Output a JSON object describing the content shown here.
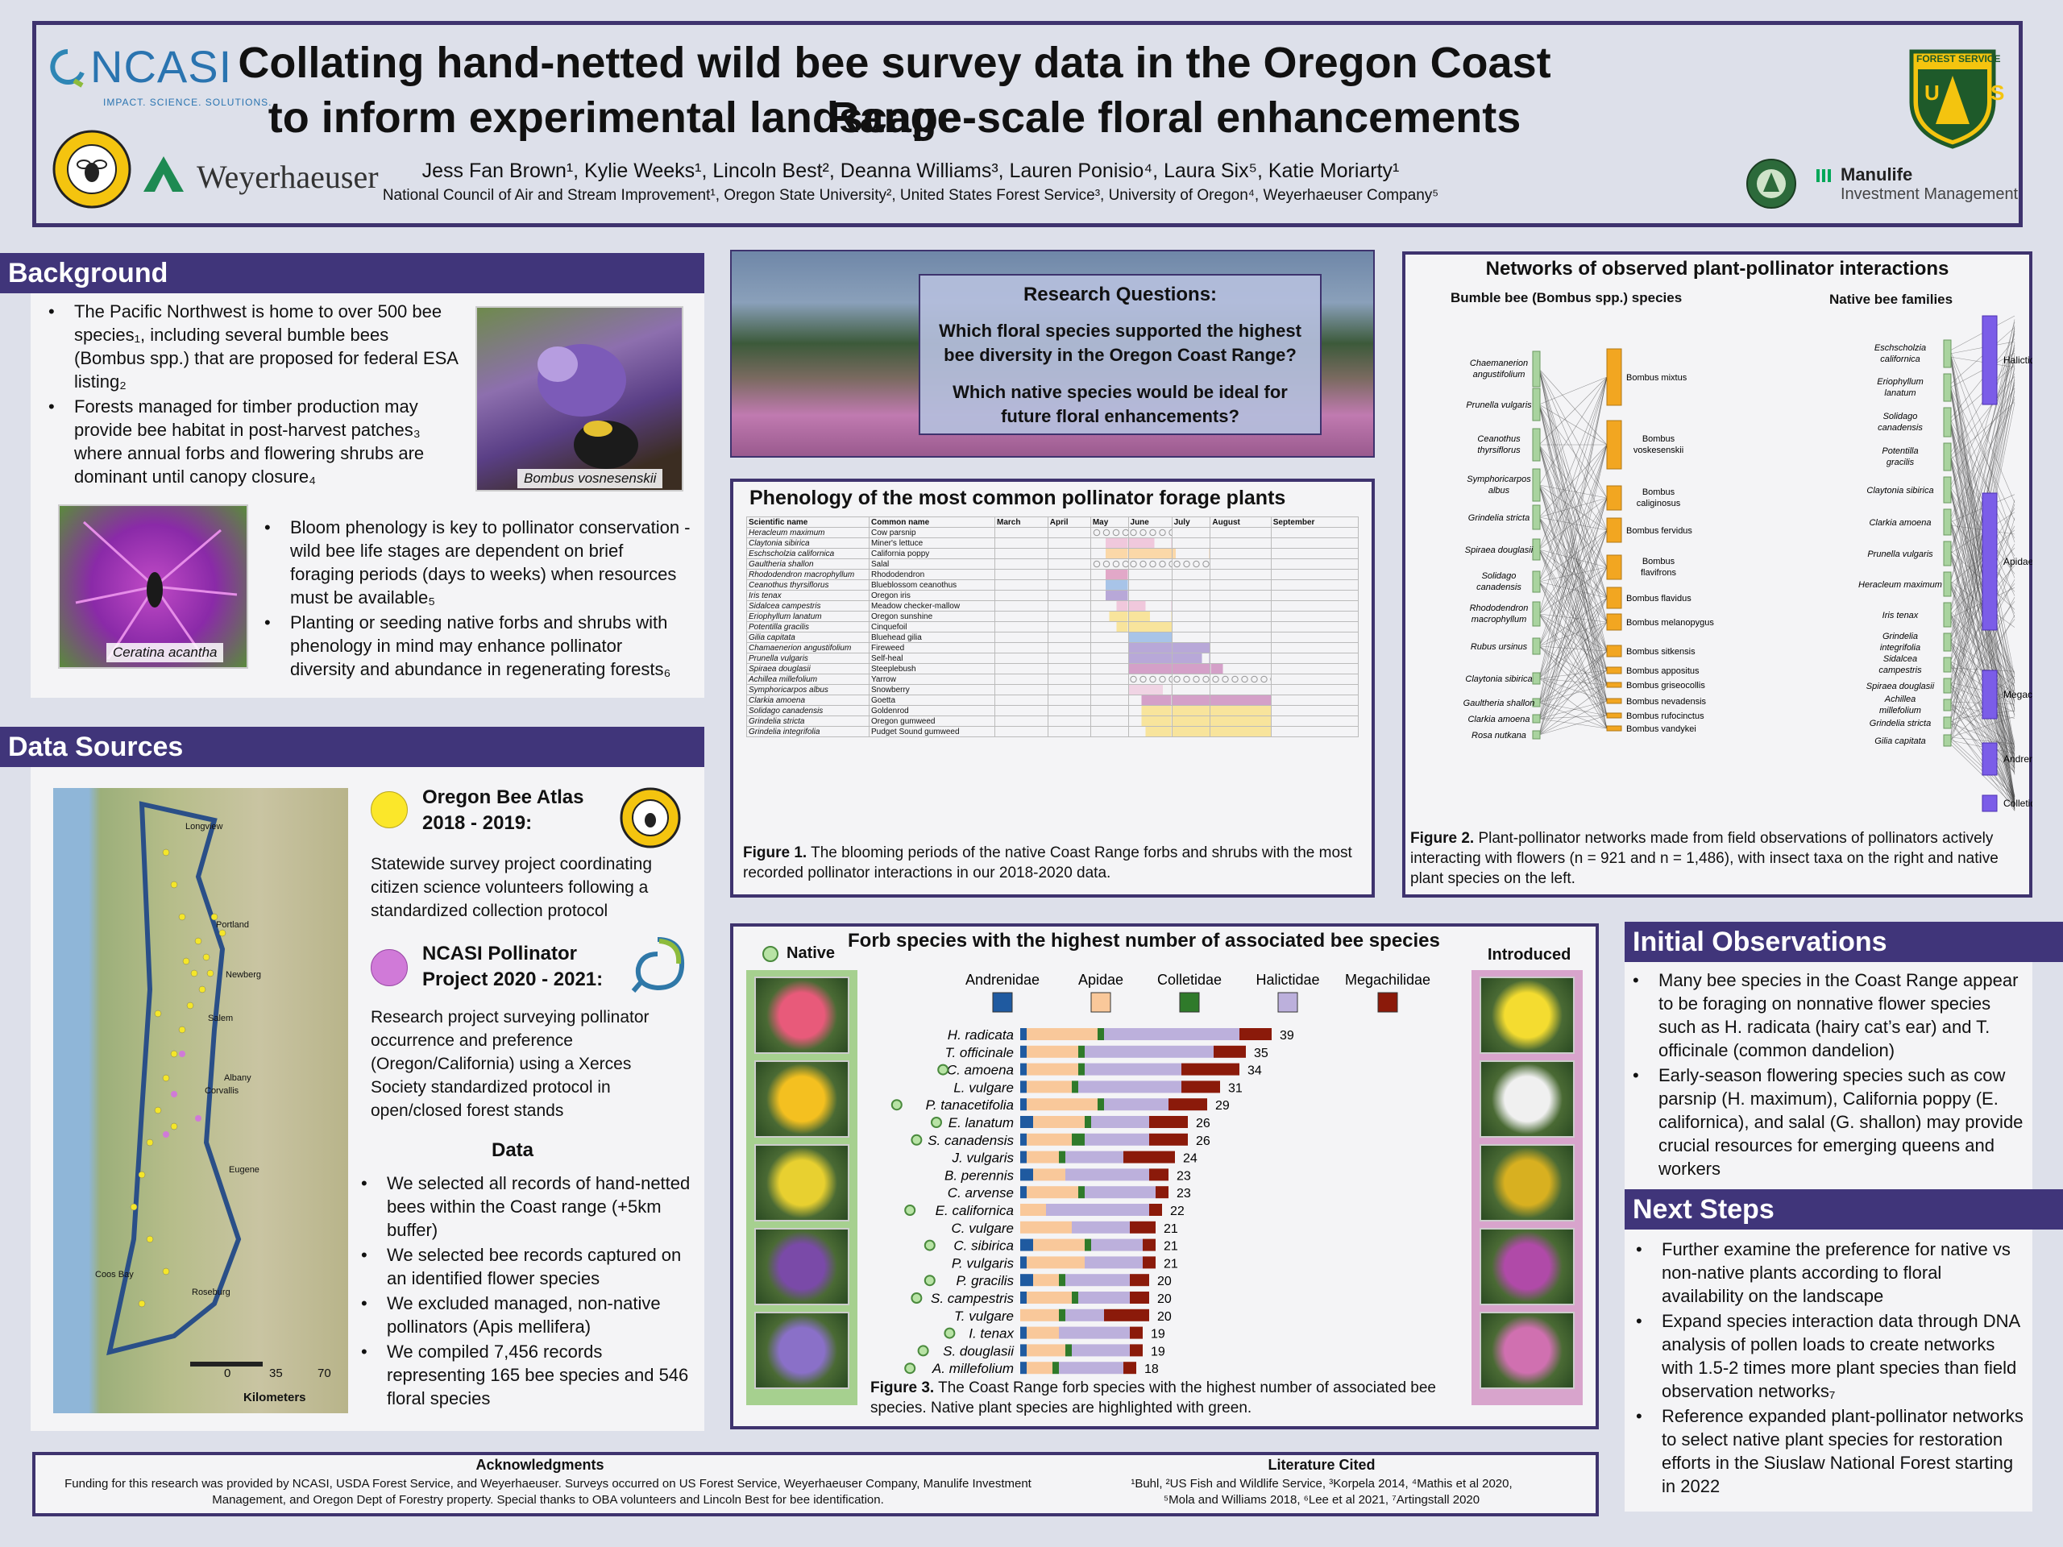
{
  "title": {
    "line1": "Collating hand-netted wild bee survey data in the Oregon Coast Range",
    "line2": "to inform experimental landscape-scale floral enhancements",
    "authors": "Jess Fan Brown¹, Kylie Weeks¹, Lincoln Best², Deanna Williams³, Lauren Ponisio⁴, Laura Six⁵, Katie Moriarty¹",
    "affiliations": "National Council of Air and Stream Improvement¹, Oregon State University², United States Forest Service³, University of Oregon⁴, Weyerhaeuser Company⁵"
  },
  "logos": {
    "ncasi": "NCASI",
    "ncasi_tag": "IMPACT. SCIENCE. SOLUTIONS.",
    "weyerhaeuser": "Weyerhaeuser",
    "forest_service": "FOREST SERVICE",
    "usfs_letters": "U S",
    "manulife": "Manulife",
    "manulife_sub": "Investment Management",
    "oregon_bee": "THE OREGON BEE PROJECT"
  },
  "background": {
    "header": "Background",
    "bullets1": [
      "The Pacific Northwest is home to over 500 bee species₁, including several bumble bees (Bombus spp.) that are proposed for federal ESA listing₂",
      "Forests managed for timber production may provide bee habitat in post-harvest patches₃ where annual forbs and flowering shrubs are dominant until canopy closure₄"
    ],
    "bullets2": [
      "Bloom phenology is key to pollinator conservation - wild bee life stages are dependent on brief foraging periods (days to weeks) when resources must be available₅",
      "Planting or seeding native forbs and shrubs with phenology in mind may enhance pollinator diversity and abundance in regenerating forests₆"
    ],
    "photo1_caption": "Bombus vosnesenskii",
    "photo2_caption": "Ceratina acantha"
  },
  "data_sources": {
    "header": "Data Sources",
    "oba_title": "Oregon Bee Atlas 2018 - 2019:",
    "oba_text": "Statewide survey project coordinating citizen science volunteers following a standardized collection protocol",
    "ncasi_title": "NCASI Pollinator Project 2020 - 2021:",
    "ncasi_text": "Research project surveying pollinator occurrence and preference (Oregon/California) using a Xerces Society standardized protocol in open/closed forest stands",
    "data_heading": "Data",
    "data_bullets": [
      "We selected all records of hand-netted bees within the Coast range (+5km buffer)",
      "We selected bee records captured on an identified flower species",
      "We excluded managed, non-native pollinators (Apis mellifera)",
      "We compiled 7,456 records representing 165 bee species and 546 floral species"
    ],
    "map_scale": [
      "0",
      "35",
      "70"
    ],
    "map_scale_unit": "Kilometers",
    "map_places": [
      "Longview",
      "Portland",
      "Salem",
      "Albany",
      "Corvallis",
      "Eugene",
      "Roseburg",
      "Coos Bay",
      "Newberg"
    ]
  },
  "research_questions": {
    "title": "Research Questions:",
    "q1": "Which floral species supported the highest bee diversity in the Oregon Coast Range?",
    "q2": "Which native species would be ideal for future floral enhancements?"
  },
  "phenology": {
    "title": "Phenology of the most common pollinator forage plants",
    "col_sci": "Scientific name",
    "col_common": "Common name",
    "months": [
      "March",
      "April",
      "May",
      "June",
      "July",
      "August",
      "September"
    ],
    "rows": [
      [
        "Heracleum maximum",
        "Cow parsnip"
      ],
      [
        "Claytonia sibirica",
        "Miner's lettuce"
      ],
      [
        "Eschscholzia californica",
        "California poppy"
      ],
      [
        "Gaultheria shallon",
        "Salal"
      ],
      [
        "Rhododendron macrophyllum",
        "Rhododendron"
      ],
      [
        "Ceanothus thyrsiflorus",
        "Blueblossom ceanothus"
      ],
      [
        "Iris tenax",
        "Oregon iris"
      ],
      [
        "Sidalcea campestris",
        "Meadow checker-mallow"
      ],
      [
        "Eriophyllum lanatum",
        "Oregon sunshine"
      ],
      [
        "Potentilla gracilis",
        "Cinquefoil"
      ],
      [
        "Gilia capitata",
        "Bluehead gilia"
      ],
      [
        "Chamaenerion angustifolium",
        "Fireweed"
      ],
      [
        "Prunella vulgaris",
        "Self-heal"
      ],
      [
        "Spiraea douglasii",
        "Steeplebush"
      ],
      [
        "Achillea millefolium",
        "Yarrow"
      ],
      [
        "Symphoricarpos albus",
        "Snowberry"
      ],
      [
        "Clarkia amoena",
        "Goetta"
      ],
      [
        "Solidago canadensis",
        "Goldenrod"
      ],
      [
        "Grindelia stricta",
        "Oregon gumweed"
      ],
      [
        "Grindelia integrifolia",
        "Pudget Sound gumweed"
      ]
    ],
    "caption_label": "Figure 1.",
    "caption": " The blooming periods of the native Coast Range forbs and shrubs with the most recorded pollinator interactions in our 2018-2020 data."
  },
  "network": {
    "title": "Networks of observed plant-pollinator interactions",
    "left_heading": "Bumble bee (Bombus spp.) species",
    "right_heading": "Native bee families",
    "left_plants": [
      "Chaemanerion angustifolium",
      "Prunella vulgaris",
      "Ceanothus thyrsiflorus",
      "Symphoricarpos albus",
      "Grindelia stricta",
      "Spiraea douglasii",
      "Solidago canadensis",
      "Rhododendron macrophyllum",
      "Rubus ursinus",
      "Claytonia sibirica",
      "Gaultheria shallon",
      "Clarkia amoena",
      "Rosa nutkana"
    ],
    "bombus": [
      "Bombus mixtus",
      "Bombus voskesenskii",
      "Bombus caliginosus",
      "Bombus fervidus",
      "Bombus flavifrons",
      "Bombus flavidus",
      "Bombus melanopygus",
      "Bombus sitkensis",
      "Bombus appositus",
      "Bombus griseocollis",
      "Bombus nevadensis",
      "Bombus rufocinctus",
      "Bombus vandykei"
    ],
    "right_plants": [
      "Eschscholzia californica",
      "Eriophyllum lanatum",
      "Solidago canadensis",
      "Potentilla gracilis",
      "Claytonia sibirica",
      "Clarkia amoena",
      "Prunella vulgaris",
      "Heracleum maximum",
      "Iris tenax",
      "Grindelia integrifolia",
      "Sidalcea campestris",
      "Spiraea douglasii",
      "Achillea millefolium",
      "Grindelia stricta",
      "Gilia capitata"
    ],
    "families": [
      "Halictidae",
      "Apidae",
      "Megachilidae",
      "Andrenidae",
      "Colletidae"
    ],
    "caption_label": "Figure 2.",
    "caption": " Plant-pollinator networks made from field observations of pollinators actively interacting with flowers (n = 921 and n = 1,486), with insect taxa on the right and native plant species on the left."
  },
  "chart_data": {
    "type": "bar",
    "title": "Forb species with the highest number of associated bee species",
    "stacked": true,
    "orientation": "horizontal",
    "legend_position": "top",
    "native_label": "Native",
    "introduced_label": "Introduced",
    "categories": [
      "H. radicata",
      "T. officinale",
      "C. amoena",
      "L. vulgare",
      "P. tanacetifolia",
      "E. lanatum",
      "S. canadensis",
      "J. vulgaris",
      "B. perennis",
      "C. arvense",
      "E. californica",
      "C. vulgare",
      "C. sibirica",
      "P. vulgaris",
      "P. gracilis",
      "S. campestris",
      "T. vulgare",
      "I. tenax",
      "S. douglasii",
      "A. millefolium"
    ],
    "native": [
      false,
      false,
      true,
      false,
      true,
      true,
      true,
      false,
      false,
      false,
      true,
      false,
      true,
      false,
      true,
      true,
      false,
      true,
      true,
      true
    ],
    "totals": [
      39,
      35,
      34,
      31,
      29,
      26,
      26,
      24,
      23,
      23,
      22,
      21,
      21,
      21,
      20,
      20,
      20,
      19,
      19,
      18
    ],
    "series": [
      {
        "name": "Andrenidae",
        "color": "#1f5aa0",
        "values": [
          1,
          1,
          1,
          1,
          1,
          2,
          1,
          1,
          2,
          1,
          0,
          0,
          2,
          1,
          2,
          1,
          0,
          1,
          1,
          1
        ]
      },
      {
        "name": "Apidae",
        "color": "#f9c89a",
        "values": [
          11,
          8,
          8,
          7,
          11,
          8,
          7,
          5,
          5,
          8,
          4,
          8,
          8,
          9,
          4,
          7,
          6,
          5,
          6,
          4
        ]
      },
      {
        "name": "Colletidae",
        "color": "#2f7a2a",
        "values": [
          1,
          1,
          1,
          1,
          1,
          1,
          2,
          1,
          0,
          1,
          0,
          0,
          1,
          0,
          1,
          1,
          1,
          0,
          1,
          1
        ]
      },
      {
        "name": "Halictidae",
        "color": "#bcb0dc",
        "values": [
          21,
          20,
          15,
          16,
          10,
          9,
          10,
          9,
          13,
          11,
          16,
          9,
          8,
          9,
          10,
          8,
          6,
          11,
          9,
          10
        ]
      },
      {
        "name": "Megachilidae",
        "color": "#8b1a0a",
        "values": [
          5,
          5,
          9,
          6,
          6,
          6,
          6,
          8,
          3,
          2,
          2,
          4,
          2,
          2,
          3,
          3,
          7,
          2,
          2,
          2
        ]
      }
    ],
    "caption_label": "Figure 3.",
    "caption": " The Coast Range forb species with the highest number of associated bee species. Native plant species are highlighted with green."
  },
  "initial_observations": {
    "header": "Initial Observations",
    "bullets": [
      "Many bee species in the Coast Range appear to be foraging on nonnative flower species such as H. radicata (hairy cat’s ear) and T. officinale (common dandelion)",
      "Early-season flowering species such as cow parsnip (H. maximum), California poppy (E. californica), and salal (G. shallon) may provide crucial resources for emerging queens and workers"
    ]
  },
  "next_steps": {
    "header": "Next Steps",
    "bullets": [
      "Further examine the preference for native vs non-native plants according to floral availability on the landscape",
      "Expand species interaction data through DNA analysis of pollen loads to create networks with 1.5-2 times more plant species than field observation networks₇",
      "Reference expanded plant-pollinator networks to select native plant species for restoration efforts in the Siuslaw National Forest starting in 2022"
    ]
  },
  "footer": {
    "ack_title": "Acknowledgments",
    "ack_text": "Funding for this research was provided by NCASI, USDA Forest Service, and Weyerhaeuser. Surveys occurred on US Forest Service, Weyerhaeuser Company, Manulife Investment Management, and Oregon Dept of Forestry property. Special thanks to OBA volunteers and Lincoln Best for bee identification.",
    "lit_title": "Literature Cited",
    "lit_text": "¹Buhl, ²US Fish and Wildlife Service, ³Korpela 2014, ⁴Mathis et al 2020, ⁵Mola and Williams 2018, ⁶Lee et al 2021, ⁷Artingstall 2020"
  }
}
